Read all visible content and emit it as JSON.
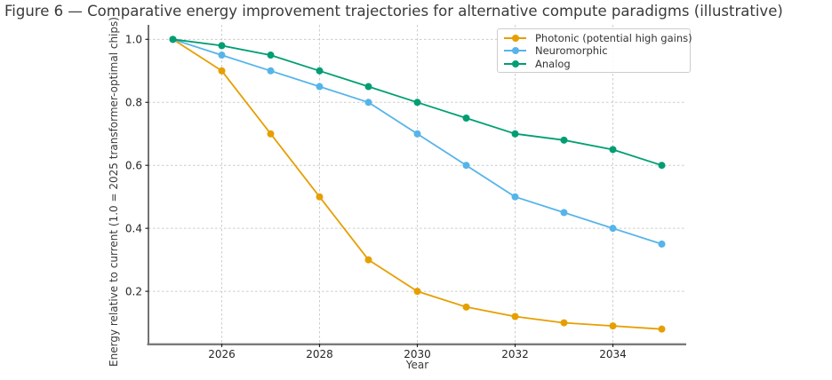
{
  "figure": {
    "title": "Figure 6 — Comparative energy improvement trajectories for alternative compute paradigms (illustrative)"
  },
  "chart_data": {
    "type": "line",
    "title": "Figure 6 — Comparative energy improvement trajectories for alternative compute paradigms (illustrative)",
    "xlabel": "Year",
    "ylabel": "Energy relative to current (1.0 = 2025 transformer-optimal chips)",
    "x": [
      2025,
      2026,
      2027,
      2028,
      2029,
      2030,
      2031,
      2032,
      2033,
      2034,
      2035
    ],
    "series": [
      {
        "name": "Photonic (potential high gains)",
        "color": "#E69F00",
        "values": [
          1.0,
          0.9,
          0.7,
          0.5,
          0.3,
          0.2,
          0.15,
          0.12,
          0.1,
          0.09,
          0.08
        ]
      },
      {
        "name": "Neuromorphic",
        "color": "#56B4E9",
        "values": [
          1.0,
          0.95,
          0.9,
          0.85,
          0.8,
          0.7,
          0.6,
          0.5,
          0.45,
          0.4,
          0.35
        ]
      },
      {
        "name": "Analog",
        "color": "#009E73",
        "values": [
          1.0,
          0.98,
          0.95,
          0.9,
          0.85,
          0.8,
          0.75,
          0.7,
          0.68,
          0.65,
          0.6
        ]
      }
    ],
    "xticks": [
      2026,
      2028,
      2030,
      2032,
      2034
    ],
    "yticks": [
      0.2,
      0.4,
      0.6,
      0.8,
      1.0
    ],
    "xlim": [
      2024.5,
      2035.5
    ],
    "ylim": [
      0.034,
      1.046
    ],
    "grid": true,
    "grid_color": "#cccccc",
    "legend_position": "upper right",
    "tick_color": "#262626",
    "spine_left_color": "#262626",
    "spine_bottom_color": "#7a7a7a",
    "marker": "circle"
  }
}
